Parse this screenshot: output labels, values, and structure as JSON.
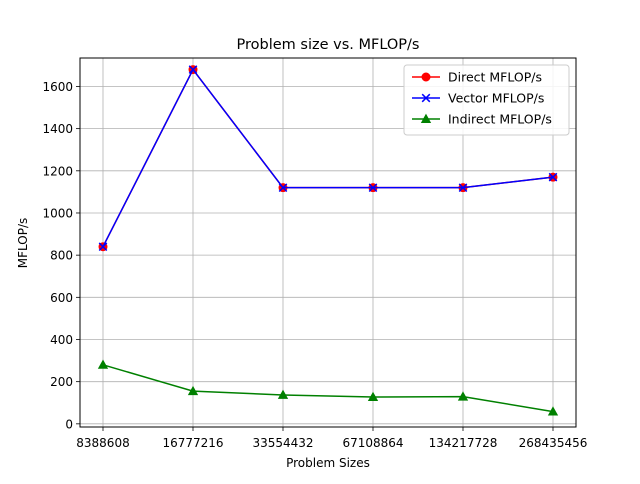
{
  "chart_data": {
    "type": "line",
    "title": "Problem size vs. MFLOP/s",
    "xlabel": "Problem Sizes",
    "ylabel": "MFLOP/s",
    "categories": [
      "8388608",
      "16777216",
      "33554432",
      "67108864",
      "134217728",
      "268435456"
    ],
    "ylim": [
      -15,
      1735
    ],
    "yticks": [
      0,
      200,
      400,
      600,
      800,
      1000,
      1200,
      1400,
      1600
    ],
    "grid": true,
    "legend_position": "top-right",
    "series": [
      {
        "name": "Direct MFLOP/s",
        "color": "#ff0000",
        "marker": "circle",
        "values": [
          840,
          1680,
          1120,
          1120,
          1120,
          1170
        ]
      },
      {
        "name": "Vector MFLOP/s",
        "color": "#0000ff",
        "marker": "x",
        "values": [
          840,
          1680,
          1120,
          1120,
          1120,
          1170
        ]
      },
      {
        "name": "Indirect MFLOP/s",
        "color": "#008000",
        "marker": "triangle",
        "values": [
          280,
          155,
          137,
          127,
          129,
          58
        ]
      }
    ]
  }
}
